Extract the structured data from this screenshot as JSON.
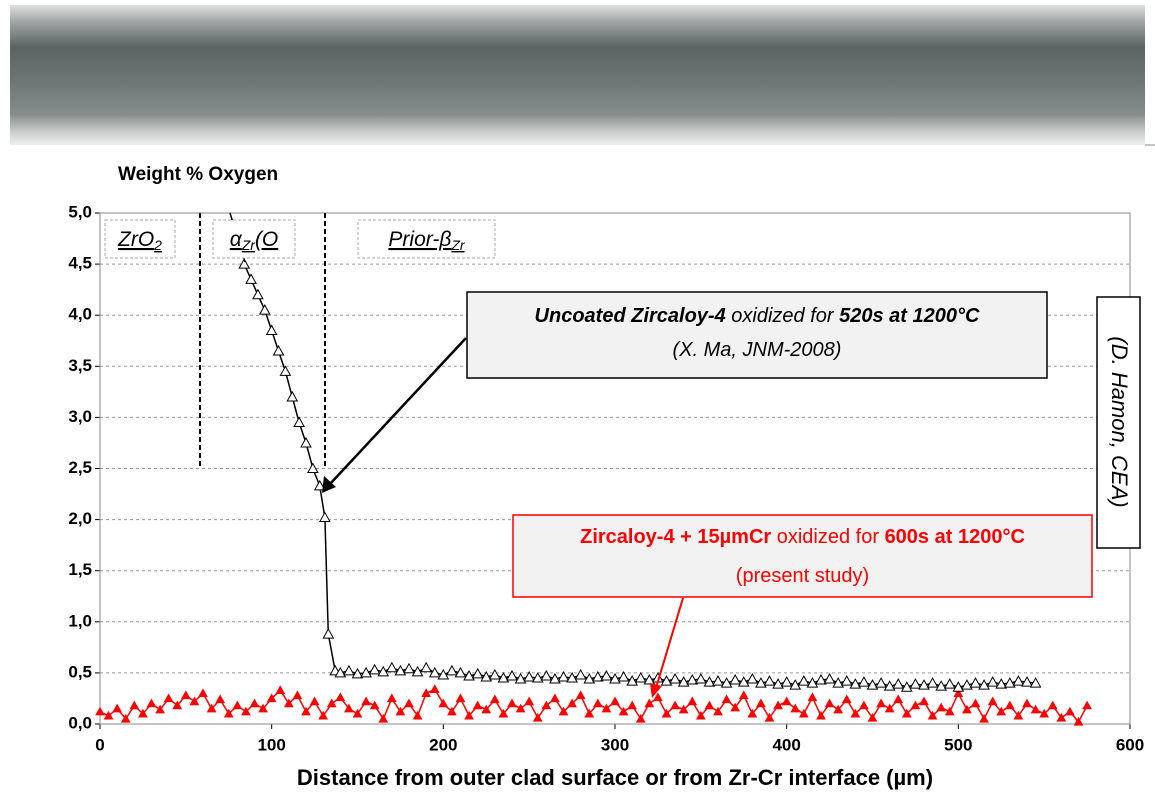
{
  "chart_data": {
    "type": "line",
    "title": "Weight % Oxygen",
    "x_title": "Distance from outer clad surface or from Zr-Cr interface (µm)",
    "xlim": [
      0,
      600
    ],
    "ylim": [
      0,
      5
    ],
    "xticks": [
      0,
      100,
      200,
      300,
      400,
      500,
      600
    ],
    "yticks": [
      {
        "value": 0,
        "label": "0,0"
      },
      {
        "value": 0.5,
        "label": "0,5"
      },
      {
        "value": 1,
        "label": "1,0"
      },
      {
        "value": 1.5,
        "label": "1,5"
      },
      {
        "value": 2,
        "label": "2,0"
      },
      {
        "value": 2.5,
        "label": "2,5"
      },
      {
        "value": 3,
        "label": "3,0"
      },
      {
        "value": 3.5,
        "label": "3,5"
      },
      {
        "value": 4,
        "label": "4,0"
      },
      {
        "value": 4.5,
        "label": "4,5"
      },
      {
        "value": 5,
        "label": "5,0"
      }
    ],
    "grid": true,
    "series": [
      {
        "color": "#ff0000",
        "x": [
          0,
          5,
          10,
          15,
          20,
          25,
          30,
          35,
          40,
          45,
          50,
          55,
          60,
          65,
          70,
          75,
          80,
          85,
          90,
          95,
          100,
          105,
          110,
          115,
          120,
          125,
          130,
          135,
          140,
          145,
          150,
          155,
          160,
          165,
          170,
          175,
          180,
          185,
          190,
          195,
          200,
          205,
          210,
          215,
          220,
          225,
          230,
          235,
          240,
          245,
          250,
          255,
          260,
          265,
          270,
          275,
          280,
          285,
          290,
          295,
          300,
          305,
          310,
          315,
          320,
          325,
          330,
          335,
          340,
          345,
          350,
          355,
          360,
          365,
          370,
          375,
          380,
          385,
          390,
          395,
          400,
          405,
          410,
          415,
          420,
          425,
          430,
          435,
          440,
          445,
          450,
          455,
          460,
          465,
          470,
          475,
          480,
          485,
          490,
          495,
          500,
          505,
          510,
          515,
          520,
          525,
          530,
          535,
          540,
          545,
          550,
          555,
          560,
          565,
          570,
          575
        ],
        "values": [
          0.12,
          0.08,
          0.15,
          0.05,
          0.18,
          0.1,
          0.2,
          0.14,
          0.25,
          0.18,
          0.28,
          0.22,
          0.3,
          0.15,
          0.24,
          0.1,
          0.18,
          0.12,
          0.2,
          0.15,
          0.25,
          0.33,
          0.2,
          0.28,
          0.12,
          0.22,
          0.08,
          0.2,
          0.26,
          0.15,
          0.1,
          0.22,
          0.18,
          0.05,
          0.25,
          0.12,
          0.2,
          0.08,
          0.3,
          0.34,
          0.2,
          0.12,
          0.25,
          0.08,
          0.18,
          0.14,
          0.24,
          0.1,
          0.2,
          0.15,
          0.22,
          0.06,
          0.18,
          0.25,
          0.12,
          0.2,
          0.28,
          0.1,
          0.2,
          0.15,
          0.22,
          0.12,
          0.18,
          0.05,
          0.2,
          0.26,
          0.1,
          0.18,
          0.14,
          0.22,
          0.08,
          0.18,
          0.12,
          0.24,
          0.16,
          0.28,
          0.1,
          0.2,
          0.06,
          0.18,
          0.22,
          0.15,
          0.1,
          0.26,
          0.08,
          0.2,
          0.14,
          0.24,
          0.1,
          0.18,
          0.06,
          0.2,
          0.15,
          0.24,
          0.1,
          0.18,
          0.22,
          0.08,
          0.16,
          0.12,
          0.3,
          0.14,
          0.2,
          0.05,
          0.22,
          0.12,
          0.18,
          0.08,
          0.2,
          0.14,
          0.1,
          0.18,
          0.06,
          0.12,
          0.02,
          0.18
        ]
      },
      {
        "color": "#000000",
        "x": [
          84,
          88,
          92,
          96,
          100,
          104,
          108,
          112,
          116,
          120,
          124,
          128,
          131,
          133,
          137,
          140,
          145,
          150,
          155,
          160,
          165,
          170,
          175,
          180,
          185,
          190,
          195,
          200,
          205,
          210,
          215,
          220,
          225,
          230,
          235,
          240,
          245,
          250,
          255,
          260,
          265,
          270,
          275,
          280,
          285,
          290,
          295,
          300,
          305,
          310,
          315,
          320,
          325,
          330,
          335,
          340,
          345,
          350,
          355,
          360,
          365,
          370,
          375,
          380,
          385,
          390,
          395,
          400,
          405,
          410,
          415,
          420,
          425,
          430,
          435,
          440,
          445,
          450,
          455,
          460,
          465,
          470,
          475,
          480,
          485,
          490,
          495,
          500,
          505,
          510,
          515,
          520,
          525,
          530,
          535,
          540,
          545
        ],
        "values": [
          4.5,
          4.35,
          4.2,
          4.05,
          3.85,
          3.65,
          3.45,
          3.2,
          2.95,
          2.75,
          2.5,
          2.33,
          2.02,
          0.88,
          0.52,
          0.5,
          0.52,
          0.49,
          0.5,
          0.53,
          0.51,
          0.55,
          0.52,
          0.54,
          0.51,
          0.55,
          0.5,
          0.48,
          0.52,
          0.5,
          0.47,
          0.49,
          0.46,
          0.48,
          0.45,
          0.47,
          0.44,
          0.46,
          0.45,
          0.47,
          0.44,
          0.46,
          0.45,
          0.48,
          0.44,
          0.46,
          0.47,
          0.44,
          0.46,
          0.42,
          0.45,
          0.43,
          0.45,
          0.42,
          0.44,
          0.41,
          0.43,
          0.44,
          0.41,
          0.42,
          0.4,
          0.43,
          0.41,
          0.44,
          0.4,
          0.42,
          0.39,
          0.41,
          0.38,
          0.42,
          0.4,
          0.43,
          0.44,
          0.4,
          0.42,
          0.39,
          0.41,
          0.38,
          0.4,
          0.37,
          0.39,
          0.36,
          0.39,
          0.38,
          0.4,
          0.37,
          0.39,
          0.36,
          0.38,
          0.4,
          0.38,
          0.41,
          0.39,
          0.4,
          0.42,
          0.41,
          0.4
        ]
      }
    ],
    "regions": [
      [
        {
          "text": "ZrO"
        },
        {
          "text": "2",
          "sub": true
        }
      ],
      [
        {
          "text": "α"
        },
        {
          "text": "Zr",
          "sub": true
        },
        {
          "text": "(O"
        }
      ],
      [
        {
          "text": "Prior-β"
        },
        {
          "text": "Zr",
          "sub": true
        }
      ]
    ],
    "annotations": [
      {
        "color": "#000000",
        "lines": [
          [
            {
              "text": "Uncoated Zircaloy-4",
              "bold": true
            },
            {
              "text": " oxidized for "
            },
            {
              "text": "520s at 1200°C",
              "bold": true
            }
          ],
          [
            {
              "text": "(X. Ma, JNM-2008)"
            }
          ]
        ]
      },
      {
        "color": "#ff0000",
        "lines": [
          [
            {
              "text": "Zircaloy-4 + 15µmCr",
              "bold": true
            },
            {
              "text": " oxidized for "
            },
            {
              "text": "600s at 1200°C",
              "bold": true
            }
          ],
          [
            {
              "text": "(present study)"
            }
          ]
        ]
      }
    ],
    "credit": "(D. Hamon, CEA)"
  }
}
